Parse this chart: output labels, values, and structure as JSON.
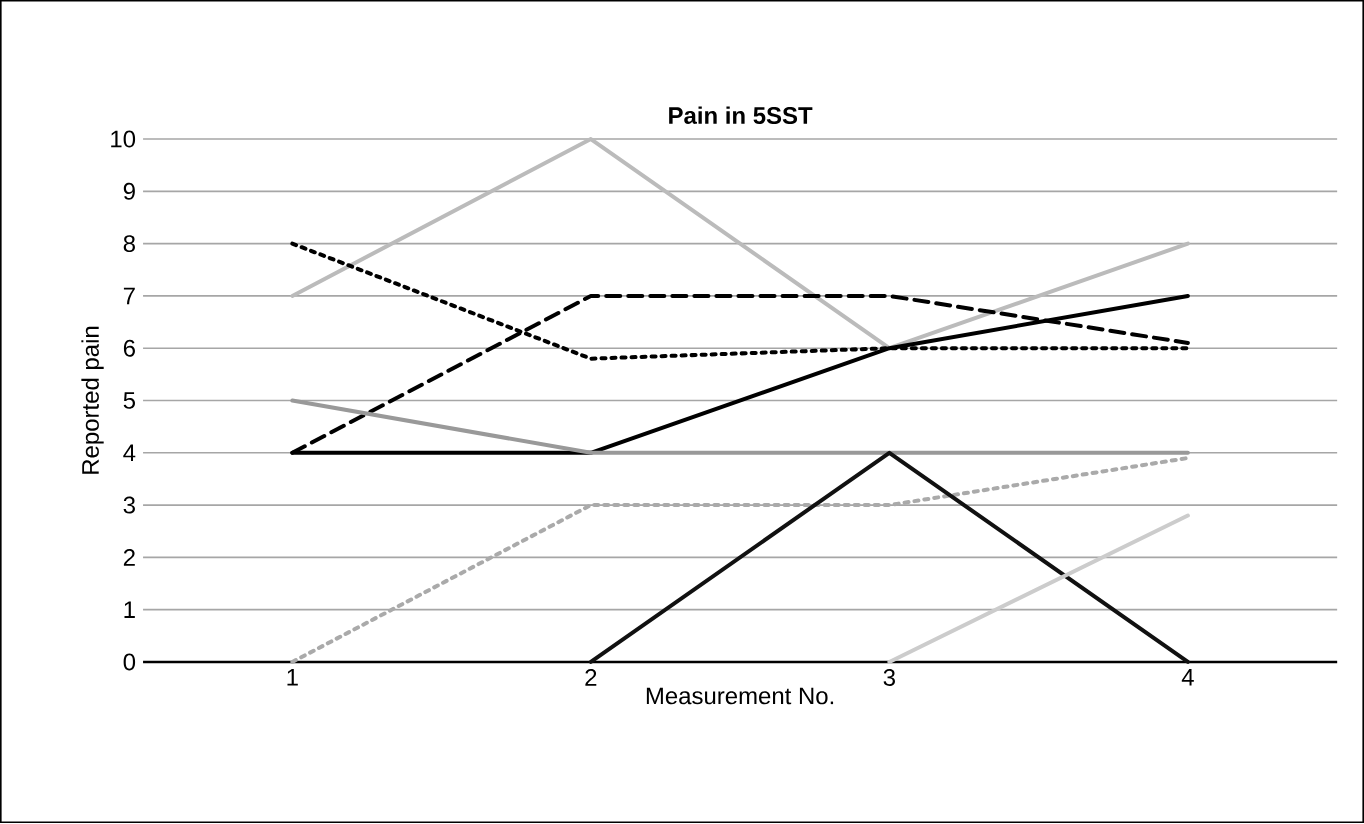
{
  "chart_data": {
    "type": "line",
    "title": "Pain in 5SST",
    "xlabel": "Measurement No.",
    "ylabel": "Reported pain",
    "categories": [
      "1",
      "2",
      "3",
      "4"
    ],
    "ylim": [
      0,
      10
    ],
    "yticks": [
      0,
      1,
      2,
      3,
      4,
      5,
      6,
      7,
      8,
      9,
      10
    ],
    "grid": "y",
    "marker": "none",
    "series": [
      {
        "color": "#bbbbbb",
        "line_style": "solid",
        "values": [
          7,
          10,
          6,
          8
        ]
      },
      {
        "color": "#000000",
        "line_style": "dotted",
        "values": [
          8,
          5.8,
          6,
          6
        ]
      },
      {
        "color": "#000000",
        "line_style": "dashed",
        "values": [
          4,
          7,
          7,
          6.1
        ]
      },
      {
        "color": "#000000",
        "line_style": "solid",
        "values": [
          4,
          4,
          6,
          7
        ]
      },
      {
        "color": "#999999",
        "line_style": "solid",
        "values": [
          5,
          4,
          4,
          4
        ]
      },
      {
        "color": "#aaaaaa",
        "line_style": "dotted",
        "values": [
          0,
          3,
          3,
          3.9
        ]
      },
      {
        "color": "#111111",
        "line_style": "solid",
        "values": [
          null,
          0,
          4,
          0
        ]
      },
      {
        "color": "#cccccc",
        "line_style": "solid",
        "values": [
          null,
          null,
          0,
          2.8
        ]
      }
    ]
  }
}
